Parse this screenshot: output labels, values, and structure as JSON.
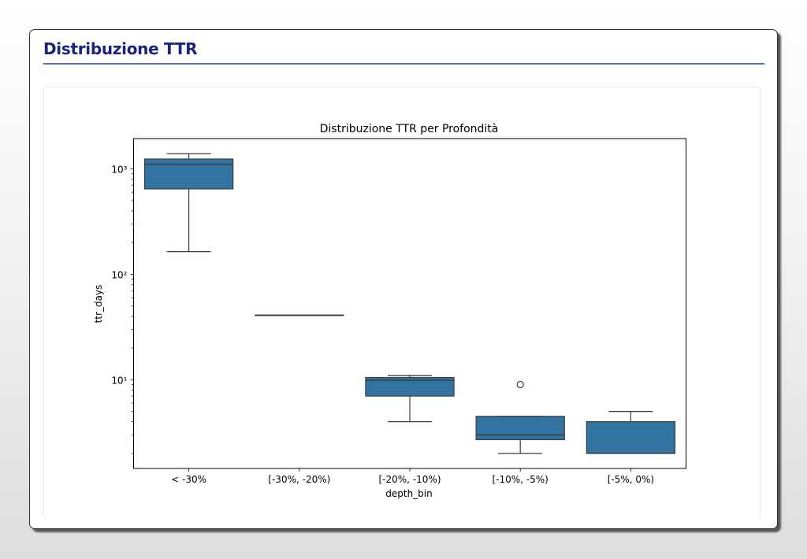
{
  "page": {
    "title": "Distribuzione TTR"
  },
  "chart_data": {
    "type": "box",
    "title": "Distribuzione TTR per Profondità",
    "xlabel": "depth_bin",
    "ylabel": "ttr_days",
    "yscale": "log",
    "ylim": [
      1.44,
      1940
    ],
    "yticks": [
      {
        "value": 10,
        "label": "10¹"
      },
      {
        "value": 100,
        "label": "10²"
      },
      {
        "value": 1000,
        "label": "10³"
      }
    ],
    "grid": false,
    "color": "#3274a1",
    "categories": [
      "< -30%",
      "[-30%, -20%)",
      "[-20%, -10%)",
      "[-10%, -5%)",
      "[-5%, 0%)"
    ],
    "boxes": [
      {
        "whislo": 164,
        "q1": 646,
        "median": 1107,
        "q3": 1241,
        "whishi": 1393,
        "outliers": []
      },
      {
        "whislo": 41,
        "q1": 41,
        "median": 41,
        "q3": 41,
        "whishi": 41,
        "outliers": []
      },
      {
        "whislo": 4.0,
        "q1": 7.0,
        "median": 9.9,
        "q3": 10.5,
        "whishi": 11.0,
        "outliers": []
      },
      {
        "whislo": 2.0,
        "q1": 2.7,
        "median": 3.0,
        "q3": 4.5,
        "whishi": 4.5,
        "outliers": [
          9.0
        ]
      },
      {
        "whislo": 2.0,
        "q1": 2.0,
        "median": 2.0,
        "q3": 4.0,
        "whishi": 5.0,
        "outliers": []
      }
    ]
  }
}
